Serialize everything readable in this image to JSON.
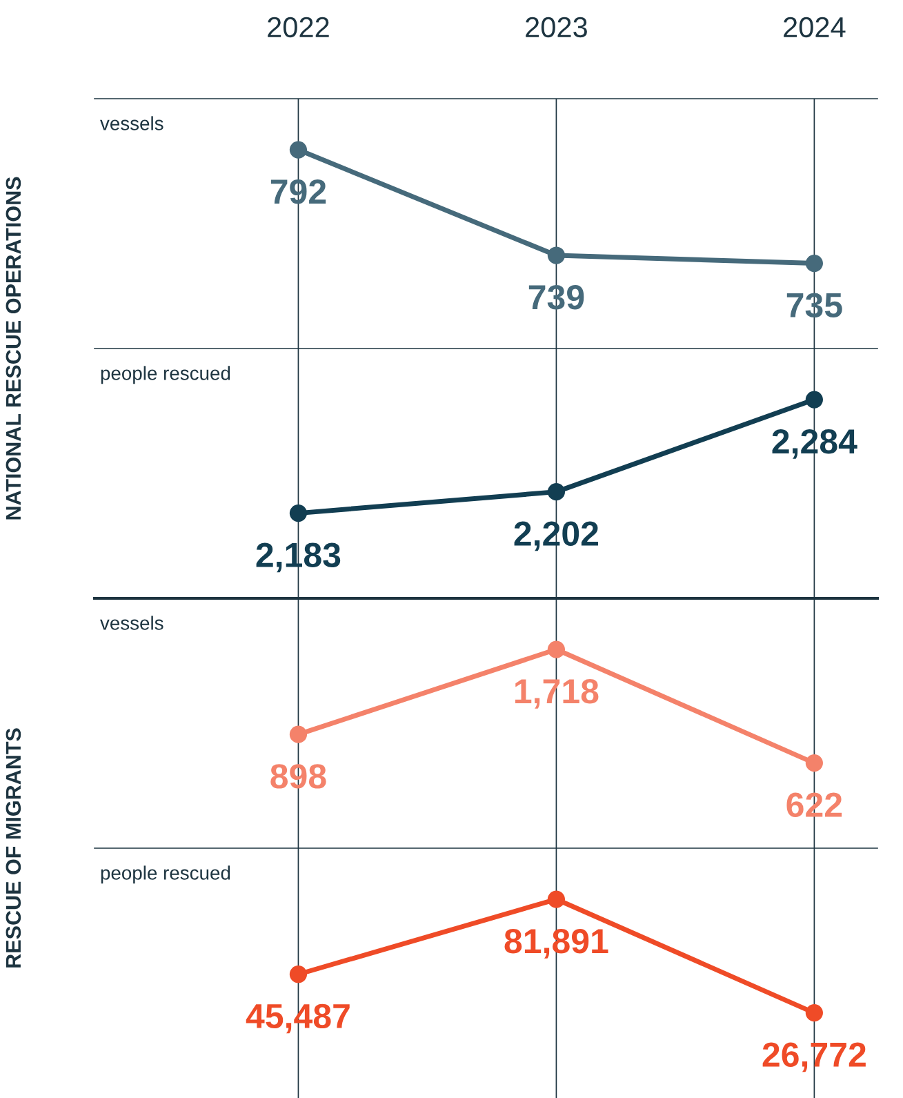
{
  "chart_data": [
    {
      "type": "line",
      "ylabel": "NATIONAL RESCUE OPERATIONS",
      "categories": [
        "2022",
        "2023",
        "2024"
      ],
      "series": [
        {
          "name": "vessels",
          "color": "#466a7b",
          "values": [
            792,
            739,
            735
          ]
        }
      ],
      "data_labels": true,
      "grid": "x",
      "marker": "circle",
      "tick_labels": "x"
    },
    {
      "type": "line",
      "categories": [
        "2022",
        "2023",
        "2024"
      ],
      "series": [
        {
          "name": "people rescued",
          "color": "#123e52",
          "values": [
            2183,
            2202,
            2284
          ],
          "value_labels": [
            "2,183",
            "2,202",
            "2,284"
          ]
        }
      ],
      "data_labels": true,
      "grid": "x",
      "marker": "circle",
      "tick_labels": false
    },
    {
      "type": "line",
      "ylabel": "RESCUE OF MIGRANTS",
      "categories": [
        "2022",
        "2023",
        "2024"
      ],
      "series": [
        {
          "name": "vessels",
          "color": "#f4826a",
          "values": [
            898,
            1718,
            622
          ],
          "value_labels": [
            "898",
            "1,718",
            "622"
          ]
        }
      ],
      "data_labels": true,
      "grid": "x",
      "marker": "circle",
      "tick_labels": false
    },
    {
      "type": "line",
      "categories": [
        "2022",
        "2023",
        "2024"
      ],
      "series": [
        {
          "name": "people rescued",
          "color": "#ef4b27",
          "values": [
            45487,
            81891,
            26772
          ],
          "value_labels": [
            "45,487",
            "81,891",
            "26,772"
          ]
        }
      ],
      "data_labels": true,
      "grid": "x",
      "marker": "circle",
      "tick_labels": false
    }
  ]
}
